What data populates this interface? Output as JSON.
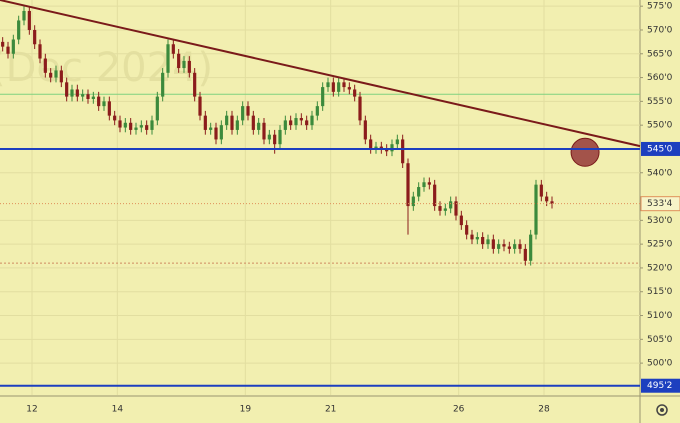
{
  "chart_data": {
    "type": "candlestick",
    "watermark": "(Dec 2024)",
    "xlim": [
      0,
      120
    ],
    "xticks": [
      {
        "value": 6,
        "label": "12"
      },
      {
        "value": 22,
        "label": "14"
      },
      {
        "value": 46,
        "label": "19"
      },
      {
        "value": 62,
        "label": "21"
      },
      {
        "value": 86,
        "label": "26"
      },
      {
        "value": 102,
        "label": "28"
      }
    ],
    "ylim": [
      493.3,
      576.3
    ],
    "yticks": [
      {
        "value": 575,
        "label": "575'0"
      },
      {
        "value": 570,
        "label": "570'0"
      },
      {
        "value": 565,
        "label": "565'0"
      },
      {
        "value": 560,
        "label": "560'0"
      },
      {
        "value": 555,
        "label": "555'0"
      },
      {
        "value": 550,
        "label": "550'0"
      },
      {
        "value": 540,
        "label": "540'0"
      },
      {
        "value": 530,
        "label": "530'0"
      },
      {
        "value": 525,
        "label": "525'0"
      },
      {
        "value": 520,
        "label": "520'0"
      },
      {
        "value": 515,
        "label": "515'0"
      },
      {
        "value": 510,
        "label": "510'0"
      },
      {
        "value": 505,
        "label": "505'0"
      },
      {
        "value": 500,
        "label": "500'0"
      }
    ],
    "grid": true,
    "up_color": "#3c8a3c",
    "down_color": "#8b1c1c",
    "open": [
      567.5,
      566.5,
      565,
      568,
      572,
      574,
      570,
      567,
      564,
      561,
      560,
      561.5,
      559,
      556,
      557.5,
      556,
      556.5,
      555.5,
      556,
      554,
      555,
      552,
      551,
      549.5,
      550.5,
      549,
      549.5,
      550,
      549,
      551,
      556,
      561,
      567,
      565,
      562,
      563.5,
      561,
      556,
      552,
      549,
      549.5,
      547,
      550,
      552,
      549,
      551,
      554,
      552,
      549,
      550.5,
      547,
      548,
      546,
      549,
      551,
      550,
      551.5,
      551,
      550,
      552,
      554,
      558,
      559,
      557,
      559,
      558,
      557.5,
      556,
      551,
      547,
      545,
      545.5,
      545,
      544.5,
      546,
      547,
      542,
      533,
      535,
      537,
      538,
      537.5,
      533,
      532,
      532.5,
      534,
      531,
      529,
      527,
      526,
      526.5,
      525,
      526,
      524,
      525,
      524.5,
      524,
      525,
      524,
      521.5,
      527,
      537.5,
      535,
      534
    ],
    "high": [
      568.5,
      567.5,
      569,
      573,
      575,
      575,
      571,
      568,
      565,
      562,
      562.5,
      562.5,
      560,
      558.5,
      558.5,
      557.5,
      557.5,
      557,
      557,
      556,
      556,
      553,
      552,
      551.5,
      551.5,
      550.5,
      551,
      551,
      552,
      557,
      562,
      568,
      568,
      566,
      564.5,
      564.5,
      562,
      557,
      553,
      550.5,
      550.5,
      551,
      553,
      553,
      552,
      555,
      555,
      553,
      551.5,
      551.5,
      549,
      549,
      550,
      552,
      552,
      552.5,
      552.5,
      552,
      553,
      555,
      559,
      560,
      560,
      560,
      560,
      559,
      558.5,
      557,
      552,
      548,
      546.5,
      546.5,
      546,
      547,
      548,
      548,
      543,
      536,
      538,
      539,
      539,
      538.5,
      534,
      533.5,
      535,
      535,
      532,
      530,
      528,
      527.5,
      527.5,
      527,
      527,
      526,
      526,
      525.5,
      526,
      526,
      525,
      528,
      538.5,
      538.5,
      536,
      535
    ],
    "low": [
      565.5,
      564,
      564,
      567,
      571,
      569,
      566,
      563,
      560,
      559,
      559,
      558,
      555,
      555,
      555,
      555,
      554.5,
      554.5,
      553,
      553,
      551,
      550,
      548.5,
      548.5,
      548,
      548,
      548.5,
      548,
      548,
      550,
      555,
      560,
      564,
      561,
      561,
      560,
      555,
      551,
      548,
      548,
      546,
      546,
      549,
      548,
      548,
      550,
      551,
      548,
      548,
      546,
      546,
      544,
      545,
      548,
      549,
      549,
      550,
      549,
      549,
      551,
      553,
      557,
      556,
      556,
      557,
      556.5,
      555,
      550,
      546,
      544,
      544,
      544,
      543.5,
      543.5,
      545,
      541,
      527,
      532,
      534,
      536,
      536.5,
      532,
      531,
      531,
      531.5,
      530,
      528,
      526,
      525,
      525,
      524,
      524,
      523,
      523,
      523.5,
      523,
      523,
      523,
      520.5,
      520.5,
      526,
      534,
      533,
      532.5
    ],
    "close": [
      566.5,
      565,
      568,
      572,
      574,
      570,
      567,
      564,
      561,
      560,
      561.5,
      559,
      556,
      557.5,
      556,
      556.5,
      555.5,
      556,
      554,
      555,
      552,
      551,
      549.5,
      550.5,
      549,
      549.5,
      550,
      549,
      551,
      556,
      561,
      567,
      565,
      562,
      563.5,
      561,
      556,
      552,
      549,
      549.5,
      547,
      550,
      552,
      549,
      551,
      554,
      552,
      549,
      550.5,
      547,
      548,
      546,
      549,
      551,
      550,
      551.5,
      551,
      550,
      552,
      554,
      558,
      559,
      557,
      559,
      558,
      557.5,
      556,
      551,
      547,
      545,
      545.5,
      545,
      544.5,
      546,
      547,
      542,
      533,
      535,
      537,
      538,
      537.5,
      533,
      532,
      532.5,
      534,
      531,
      529,
      527,
      526,
      526.5,
      525,
      526,
      524,
      525,
      524.5,
      524,
      525,
      524,
      521.5,
      527,
      537.5,
      535,
      534,
      533.5
    ],
    "levels": [
      {
        "value": 545,
        "label": "545'0",
        "color": "#1d3fbf"
      },
      {
        "value": 495.25,
        "label": "495'2",
        "color": "#1d3fbf"
      }
    ],
    "last_price": {
      "value": 533.5,
      "label": "533'4",
      "color": "#e0905a"
    },
    "h_lines": [
      {
        "value": 556.5,
        "color": "#7fd27f",
        "dash": false
      },
      {
        "value": 521,
        "color": "#d08a60",
        "dash": true
      }
    ],
    "trendline": {
      "x": [
        0,
        120
      ],
      "y": [
        576.3,
        545.6
      ],
      "color": "#7a1a1a"
    },
    "circle": {
      "x": 109.7,
      "y": 544.3,
      "color": "#a3534a"
    }
  }
}
